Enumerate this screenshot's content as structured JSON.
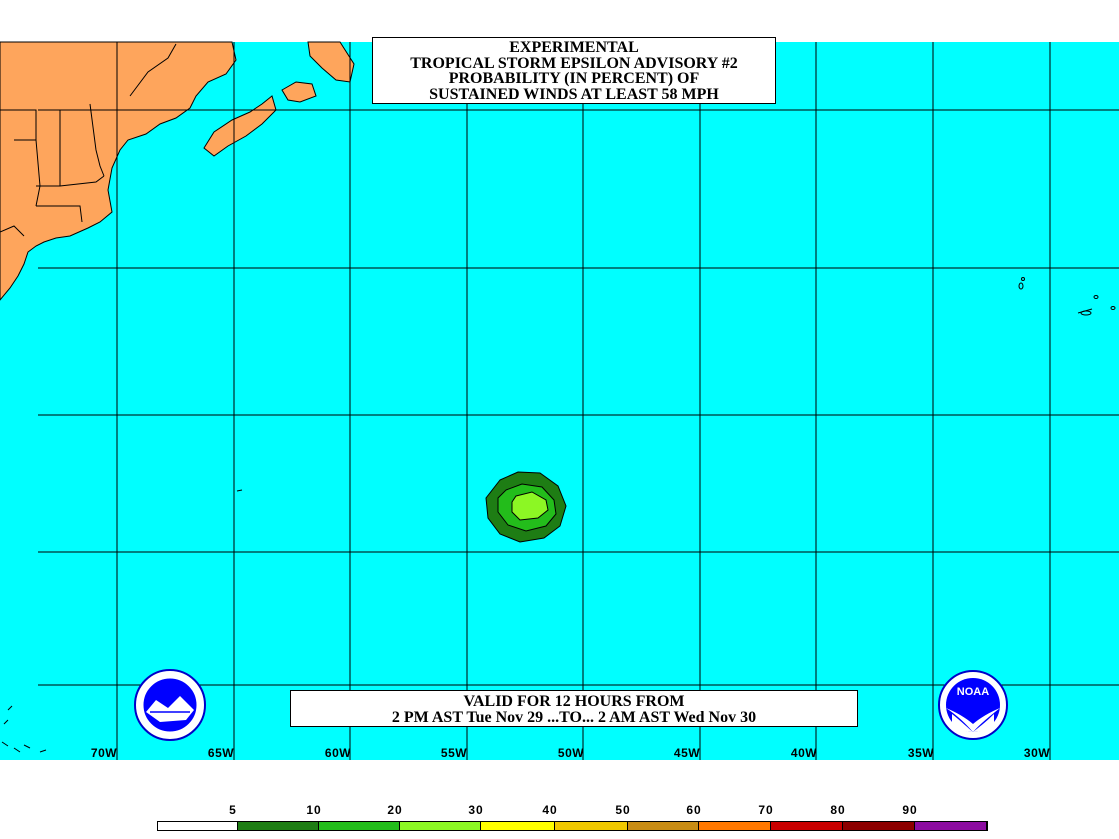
{
  "title": {
    "line1": "EXPERIMENTAL",
    "line2": "TROPICAL STORM EPSILON ADVISORY #2",
    "line3": "PROBABILITY (IN PERCENT) OF",
    "line4": "SUSTAINED WINDS AT LEAST 58 MPH"
  },
  "valid": {
    "line1": "VALID FOR 12 HOURS FROM",
    "line2": "2 PM AST Tue Nov 29 ...TO... 2 AM AST Wed Nov 30"
  },
  "longitude_labels": [
    "70W",
    "65W",
    "60W",
    "55W",
    "50W",
    "45W",
    "40W",
    "35W",
    "30W"
  ],
  "legend": {
    "labels": [
      "5",
      "10",
      "20",
      "30",
      "40",
      "50",
      "60",
      "70",
      "80",
      "90"
    ],
    "colors": [
      "#ffffff",
      "#1e7d14",
      "#23bd1b",
      "#8cf724",
      "#ffff00",
      "#f0c800",
      "#c88c14",
      "#ff7800",
      "#c80000",
      "#8c0000",
      "#8c0ca0"
    ]
  },
  "colors": {
    "ocean": "#00ffff",
    "land": "#fea55c",
    "prob_10": "#1e7d14",
    "prob_20": "#23bd1b",
    "prob_30": "#8cf724"
  },
  "logos": {
    "left": "nws-logo",
    "right": "noaa-logo",
    "right_text": "NOAA"
  }
}
